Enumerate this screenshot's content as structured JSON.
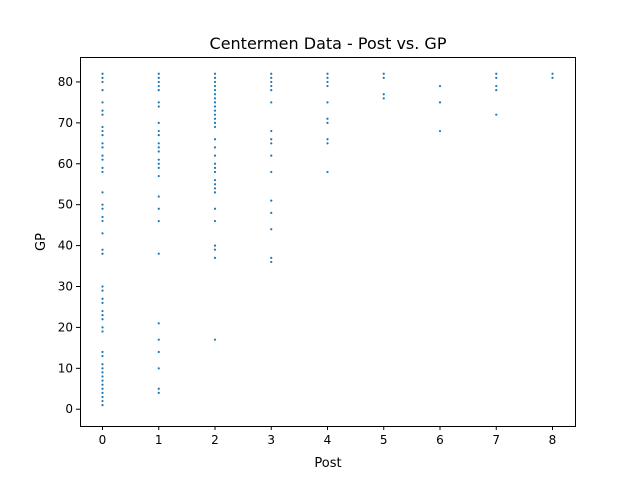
{
  "chart_data": {
    "type": "scatter",
    "title": "Centermen Data - Post vs. GP",
    "xlabel": "Post",
    "ylabel": "GP",
    "xlim": [
      -0.4,
      8.4
    ],
    "ylim": [
      -4.1,
      86.1
    ],
    "xticks": [
      0,
      1,
      2,
      3,
      4,
      5,
      6,
      7,
      8
    ],
    "yticks": [
      0,
      10,
      20,
      30,
      40,
      50,
      60,
      70,
      80
    ],
    "grid": false,
    "color": "#1f77b4",
    "series": [
      {
        "points": [
          [
            0,
            1
          ],
          [
            0,
            2
          ],
          [
            0,
            3
          ],
          [
            0,
            4
          ],
          [
            0,
            5
          ],
          [
            0,
            6
          ],
          [
            0,
            7
          ],
          [
            0,
            8
          ],
          [
            0,
            9
          ],
          [
            0,
            10
          ],
          [
            0,
            11
          ],
          [
            0,
            13
          ],
          [
            0,
            14
          ],
          [
            0,
            19
          ],
          [
            0,
            20
          ],
          [
            0,
            22
          ],
          [
            0,
            23
          ],
          [
            0,
            24
          ],
          [
            0,
            26
          ],
          [
            0,
            27
          ],
          [
            0,
            29
          ],
          [
            0,
            30
          ],
          [
            0,
            38
          ],
          [
            0,
            39
          ],
          [
            0,
            43
          ],
          [
            0,
            46
          ],
          [
            0,
            47
          ],
          [
            0,
            49
          ],
          [
            0,
            50
          ],
          [
            0,
            53
          ],
          [
            0,
            58
          ],
          [
            0,
            59
          ],
          [
            0,
            61
          ],
          [
            0,
            62
          ],
          [
            0,
            64
          ],
          [
            0,
            65
          ],
          [
            0,
            67
          ],
          [
            0,
            68
          ],
          [
            0,
            69
          ],
          [
            0,
            72
          ],
          [
            0,
            73
          ],
          [
            0,
            75
          ],
          [
            0,
            78
          ],
          [
            0,
            80
          ],
          [
            0,
            81
          ],
          [
            0,
            82
          ],
          [
            1,
            4
          ],
          [
            1,
            5
          ],
          [
            1,
            10
          ],
          [
            1,
            14
          ],
          [
            1,
            17
          ],
          [
            1,
            21
          ],
          [
            1,
            38
          ],
          [
            1,
            46
          ],
          [
            1,
            49
          ],
          [
            1,
            52
          ],
          [
            1,
            57
          ],
          [
            1,
            59
          ],
          [
            1,
            60
          ],
          [
            1,
            61
          ],
          [
            1,
            63
          ],
          [
            1,
            64
          ],
          [
            1,
            65
          ],
          [
            1,
            67
          ],
          [
            1,
            68
          ],
          [
            1,
            70
          ],
          [
            1,
            74
          ],
          [
            1,
            75
          ],
          [
            1,
            78
          ],
          [
            1,
            79
          ],
          [
            1,
            80
          ],
          [
            1,
            81
          ],
          [
            1,
            82
          ],
          [
            2,
            17
          ],
          [
            2,
            37
          ],
          [
            2,
            39
          ],
          [
            2,
            40
          ],
          [
            2,
            46
          ],
          [
            2,
            49
          ],
          [
            2,
            53
          ],
          [
            2,
            54
          ],
          [
            2,
            55
          ],
          [
            2,
            56
          ],
          [
            2,
            58
          ],
          [
            2,
            59
          ],
          [
            2,
            60
          ],
          [
            2,
            62
          ],
          [
            2,
            64
          ],
          [
            2,
            66
          ],
          [
            2,
            69
          ],
          [
            2,
            70
          ],
          [
            2,
            71
          ],
          [
            2,
            72
          ],
          [
            2,
            73
          ],
          [
            2,
            74
          ],
          [
            2,
            75
          ],
          [
            2,
            76
          ],
          [
            2,
            77
          ],
          [
            2,
            78
          ],
          [
            2,
            79
          ],
          [
            2,
            80
          ],
          [
            2,
            81
          ],
          [
            2,
            82
          ],
          [
            3,
            36
          ],
          [
            3,
            37
          ],
          [
            3,
            44
          ],
          [
            3,
            48
          ],
          [
            3,
            51
          ],
          [
            3,
            58
          ],
          [
            3,
            62
          ],
          [
            3,
            65
          ],
          [
            3,
            66
          ],
          [
            3,
            68
          ],
          [
            3,
            75
          ],
          [
            3,
            78
          ],
          [
            3,
            79
          ],
          [
            3,
            80
          ],
          [
            3,
            81
          ],
          [
            3,
            82
          ],
          [
            4,
            58
          ],
          [
            4,
            65
          ],
          [
            4,
            66
          ],
          [
            4,
            70
          ],
          [
            4,
            71
          ],
          [
            4,
            75
          ],
          [
            4,
            79
          ],
          [
            4,
            80
          ],
          [
            4,
            81
          ],
          [
            4,
            82
          ],
          [
            5,
            76
          ],
          [
            5,
            77
          ],
          [
            5,
            81
          ],
          [
            5,
            82
          ],
          [
            6,
            68
          ],
          [
            6,
            75
          ],
          [
            6,
            79
          ],
          [
            7,
            72
          ],
          [
            7,
            78
          ],
          [
            7,
            79
          ],
          [
            7,
            81
          ],
          [
            7,
            82
          ],
          [
            8,
            81
          ],
          [
            8,
            82
          ]
        ]
      }
    ]
  }
}
